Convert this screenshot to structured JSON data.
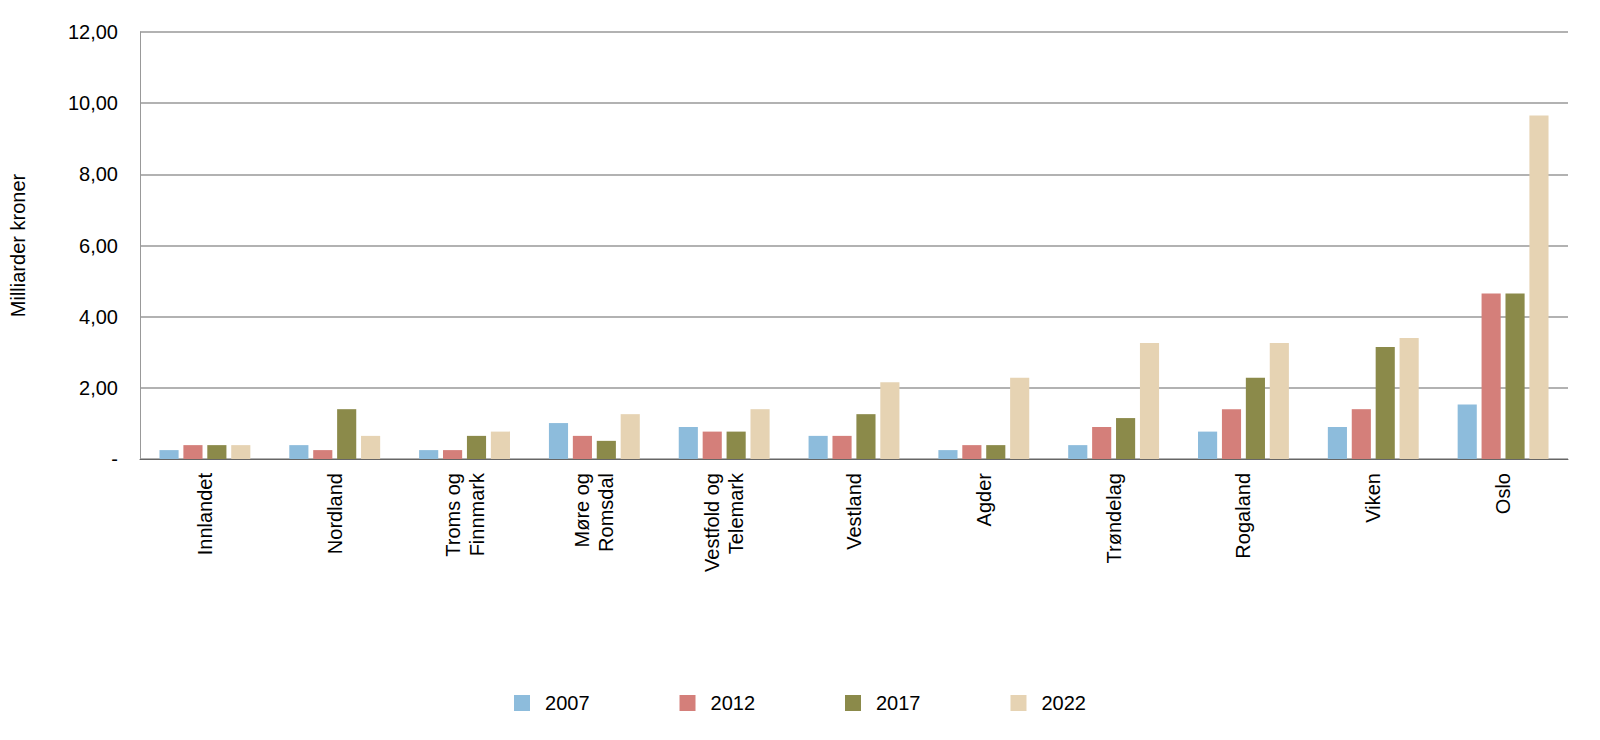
{
  "chart_data": {
    "type": "bar",
    "y_label": "Milliarder kroner",
    "categories": [
      "Innlandet",
      "Nordland",
      "Troms og\nFinnmark",
      "Møre og\nRomsdal",
      "Vestfold og\nTelemark",
      "Vestland",
      "Agder",
      "Trøndelag",
      "Rogaland",
      "Viken",
      "Oslo"
    ],
    "series": [
      {
        "name": "2007",
        "color": "#8dbcdc",
        "values": [
          0.25,
          0.39,
          0.25,
          1.01,
          0.9,
          0.65,
          0.25,
          0.39,
          0.77,
          0.9,
          1.53
        ]
      },
      {
        "name": "2012",
        "color": "#d47f7a",
        "values": [
          0.39,
          0.25,
          0.25,
          0.65,
          0.77,
          0.65,
          0.39,
          0.9,
          1.4,
          1.4,
          4.65
        ]
      },
      {
        "name": "2017",
        "color": "#8b8a4a",
        "values": [
          0.39,
          1.4,
          0.65,
          0.51,
          0.77,
          1.26,
          0.39,
          1.15,
          2.28,
          3.15,
          4.65
        ]
      },
      {
        "name": "2022",
        "color": "#e6d3b3",
        "values": [
          0.39,
          0.65,
          0.77,
          1.26,
          1.4,
          2.16,
          2.28,
          3.26,
          3.26,
          3.4,
          9.65
        ]
      }
    ],
    "ylim": [
      0,
      12
    ],
    "yticks": [
      {
        "value": 0,
        "label": "-"
      },
      {
        "value": 2,
        "label": "2,00"
      },
      {
        "value": 4,
        "label": "4,00"
      },
      {
        "value": 6,
        "label": "6,00"
      },
      {
        "value": 8,
        "label": "8,00"
      },
      {
        "value": 10,
        "label": "10,00"
      },
      {
        "value": 12,
        "label": "12,00"
      }
    ],
    "grid": true,
    "legend": "bottom"
  }
}
